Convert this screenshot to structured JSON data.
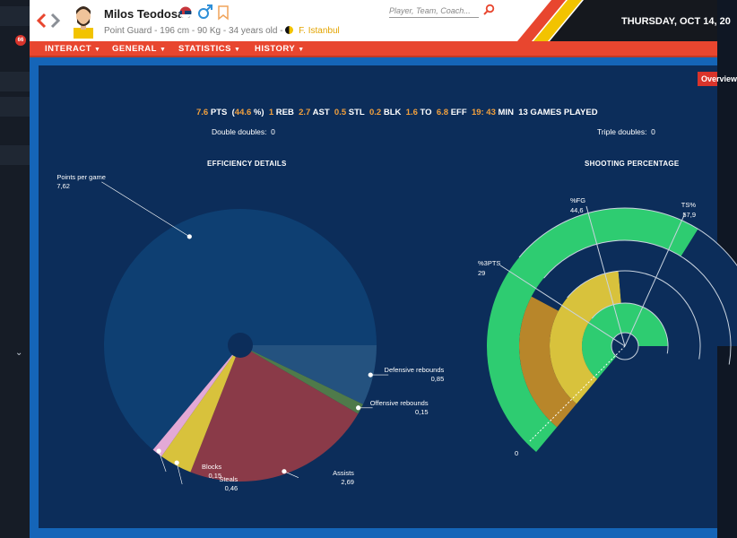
{
  "header": {
    "player_name": "Milos Teodosac",
    "position": "Point Guard",
    "height": "196 cm",
    "weight": "90 Kg",
    "age": "34 years old",
    "team": "F. Istanbul",
    "search_placeholder": "Player, Team, Coach...",
    "date": "THURSDAY, OCT 14, 20",
    "icons": [
      "back-arrow-icon",
      "forward-arrow-icon",
      "serbia-flag-icon",
      "male-icon",
      "bookmark-icon",
      "search-icon",
      "team-logo-icon"
    ]
  },
  "sidebar": {
    "badge": "66"
  },
  "menu": [
    {
      "label": "INTERACT"
    },
    {
      "label": "GENERAL"
    },
    {
      "label": "STATISTICS"
    },
    {
      "label": "HISTORY"
    }
  ],
  "overview_tab": "Overview",
  "stats": {
    "pts_value": "7.6",
    "pts_label": "PTS",
    "fg_value": "(44.6 %)",
    "reb_value": "1",
    "reb_label": "REB",
    "ast_value": "2.7",
    "ast_label": "AST",
    "stl_value": "0.5",
    "stl_label": "STL",
    "blk_value": "0.2",
    "blk_label": "BLK",
    "to_value": "1.6",
    "to_label": "TO",
    "eff_value": "6.8",
    "eff_label": "EFF",
    "min_value": "19: 43",
    "min_label": "MIN",
    "games": "13 GAMES PLAYED",
    "double_doubles_label": "Double doubles:",
    "double_doubles_value": "0",
    "triple_doubles_label": "Triple doubles:",
    "triple_doubles_value": "0"
  },
  "efficiency_title": "EFFICIENCY DETAILS",
  "shooting_title": "SHOOTING PERCENTAGE",
  "colors": {
    "accent": "#e8462f",
    "panel": "#0c2d5a",
    "stat_value": "#f2a03d"
  },
  "chart_data": [
    {
      "type": "pie",
      "title": "EFFICIENCY DETAILS",
      "slices": [
        {
          "name": "Points per game",
          "value": 7.62,
          "label": "7,62",
          "color": "#0e3f72"
        },
        {
          "name": "Defensive rebounds",
          "value": 0.85,
          "label": "0,85",
          "color": "#24527f"
        },
        {
          "name": "Offensive rebounds",
          "value": 0.15,
          "label": "0,15",
          "color": "#4f7a4a"
        },
        {
          "name": "Assists",
          "value": 2.69,
          "label": "2,69",
          "color": "#8a3a48"
        },
        {
          "name": "Steals",
          "value": 0.46,
          "label": "0,46",
          "color": "#d8c23c"
        },
        {
          "name": "Blocks",
          "value": 0.15,
          "label": "0,15",
          "color": "#e3a9d6"
        }
      ]
    },
    {
      "type": "bar",
      "title": "SHOOTING PERCENTAGE",
      "categories": [
        "%FG",
        "TS%",
        "%3PTS"
      ],
      "values": [
        44.6,
        57.9,
        29
      ],
      "labels": [
        "44,6",
        "57,9",
        "29"
      ],
      "axis_min_label": "0"
    }
  ]
}
